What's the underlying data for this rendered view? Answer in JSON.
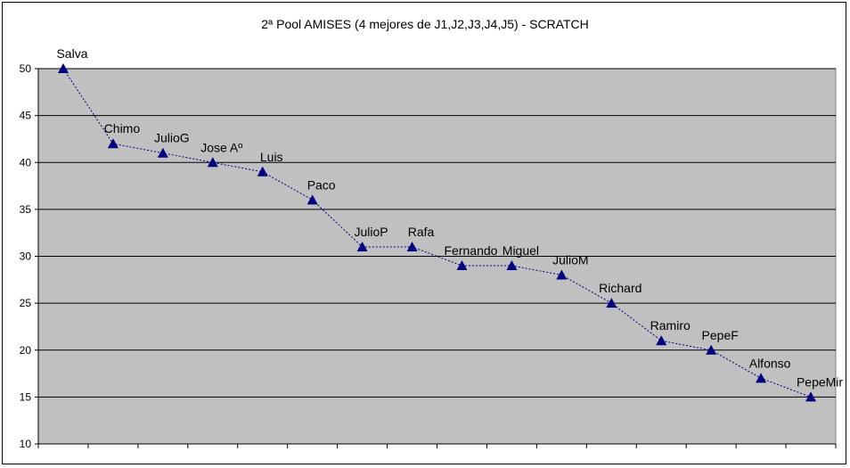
{
  "chart_data": {
    "type": "line",
    "title": "2ª Pool AMISES (4 mejores de J1,J2,J3,J4,J5) - SCRATCH",
    "xlabel": "",
    "ylabel": "",
    "ylim": [
      10,
      50
    ],
    "yticks": [
      10,
      15,
      20,
      25,
      30,
      35,
      40,
      45,
      50
    ],
    "grid": true,
    "legend": "none",
    "colors": {
      "line": "#000080",
      "marker": "#000080",
      "plot_bg": "#c0c0c0",
      "grid": "#000000"
    },
    "marker": "triangle",
    "points": [
      {
        "label": "Salva",
        "value": 50
      },
      {
        "label": "Chimo",
        "value": 42
      },
      {
        "label": "JulioG",
        "value": 41
      },
      {
        "label": "Jose Aº",
        "value": 40
      },
      {
        "label": "Luis",
        "value": 39
      },
      {
        "label": "Paco",
        "value": 36
      },
      {
        "label": "JulioP",
        "value": 31
      },
      {
        "label": "Rafa",
        "value": 31
      },
      {
        "label": "Fernando",
        "value": 29
      },
      {
        "label": "Miguel",
        "value": 29
      },
      {
        "label": "JulioM",
        "value": 28
      },
      {
        "label": "Richard",
        "value": 25
      },
      {
        "label": "Ramiro",
        "value": 21
      },
      {
        "label": "PepeF",
        "value": 20
      },
      {
        "label": "Alfonso",
        "value": 17
      },
      {
        "label": "PepeMir",
        "value": 15
      }
    ]
  }
}
